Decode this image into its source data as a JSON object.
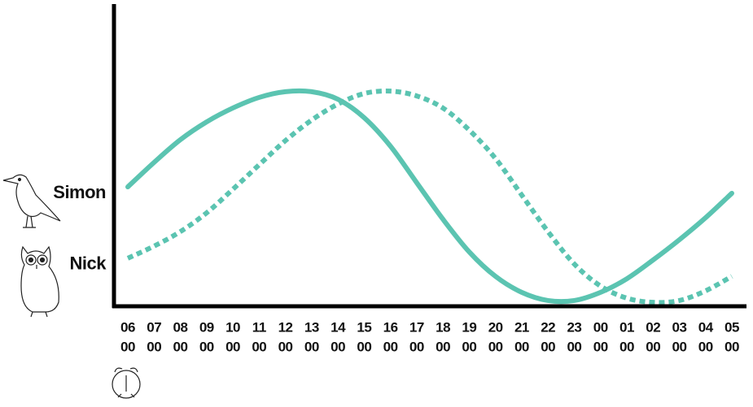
{
  "chart_data": {
    "type": "line",
    "categories": [
      [
        "06",
        "00"
      ],
      [
        "07",
        "00"
      ],
      [
        "08",
        "00"
      ],
      [
        "09",
        "00"
      ],
      [
        "10",
        "00"
      ],
      [
        "11",
        "00"
      ],
      [
        "12",
        "00"
      ],
      [
        "13",
        "00"
      ],
      [
        "14",
        "00"
      ],
      [
        "15",
        "00"
      ],
      [
        "16",
        "00"
      ],
      [
        "17",
        "00"
      ],
      [
        "18",
        "00"
      ],
      [
        "19",
        "00"
      ],
      [
        "20",
        "00"
      ],
      [
        "21",
        "00"
      ],
      [
        "22",
        "00"
      ],
      [
        "23",
        "00"
      ],
      [
        "00",
        "00"
      ],
      [
        "01",
        "00"
      ],
      [
        "02",
        "00"
      ],
      [
        "03",
        "00"
      ],
      [
        "04",
        "00"
      ],
      [
        "05",
        "00"
      ]
    ],
    "series": [
      {
        "name": "Simon",
        "color": "#5bc4b1",
        "style": "solid",
        "values": [
          39.5,
          47.6,
          55.1,
          61.0,
          65.6,
          69.1,
          71.0,
          71.0,
          68.5,
          62.4,
          53.0,
          40.9,
          28.8,
          18.0,
          9.9,
          4.6,
          1.9,
          1.9,
          4.6,
          9.1,
          15.3,
          22.0,
          29.3,
          37.4
        ]
      },
      {
        "name": "Nick",
        "color": "#5bc4b1",
        "style": "dotted",
        "values": [
          15.9,
          19.9,
          24.7,
          30.9,
          38.7,
          46.8,
          54.8,
          61.6,
          66.9,
          70.4,
          71.2,
          69.6,
          65.6,
          58.3,
          48.9,
          36.8,
          24.7,
          14.0,
          6.7,
          2.7,
          1.3,
          1.9,
          5.1,
          9.9
        ]
      }
    ],
    "ylim": [
      0,
      100
    ]
  }
}
